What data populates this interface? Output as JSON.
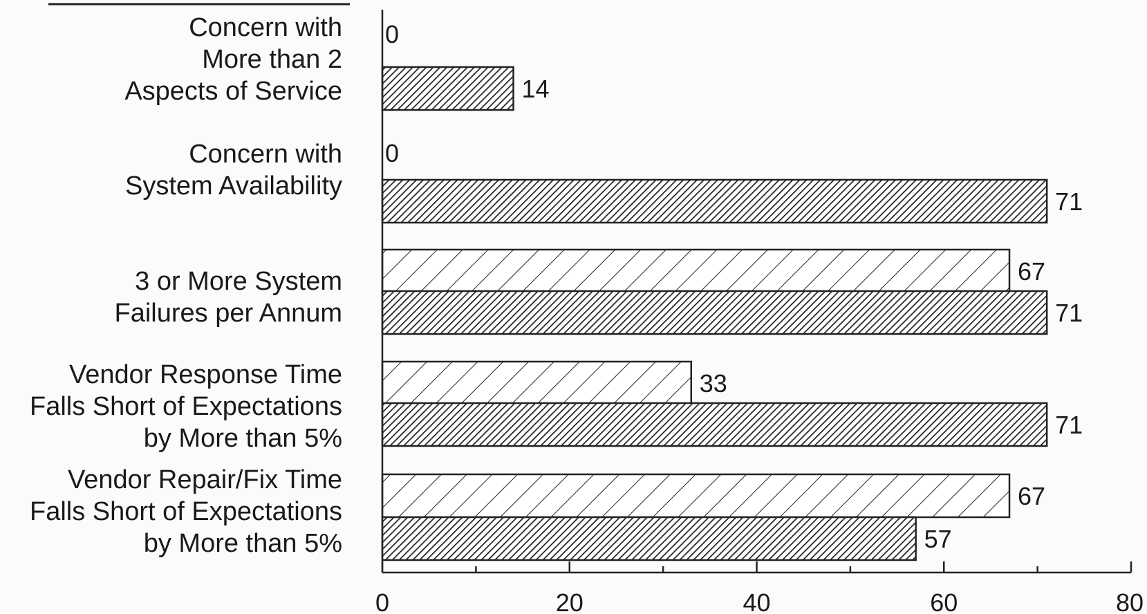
{
  "chart_data": {
    "type": "bar",
    "orientation": "horizontal",
    "title": "",
    "xlabel": "",
    "ylabel": "",
    "xlim": [
      0,
      80
    ],
    "x_ticks": [
      "0",
      "20",
      "40",
      "60",
      "80"
    ],
    "grid": false,
    "legend": "none",
    "categories": [
      [
        "Concern with",
        "More than 2",
        "Aspects of Service"
      ],
      [
        "Concern with",
        "System Availability"
      ],
      [
        "3 or More System",
        "Failures per Annum"
      ],
      [
        "Vendor Response Time",
        "Falls Short of Expectations",
        "by More than 5%"
      ],
      [
        "Vendor Repair/Fix Time",
        "Falls Short of Expectations",
        "by More than 5%"
      ]
    ],
    "series": [
      {
        "pattern": "sparse-hatch",
        "fill": "#ffffff",
        "values": [
          0,
          0,
          67,
          33,
          67
        ]
      },
      {
        "pattern": "dense-hatch",
        "fill": "#2a2a2a",
        "values": [
          14,
          71,
          71,
          71,
          57
        ]
      }
    ]
  }
}
